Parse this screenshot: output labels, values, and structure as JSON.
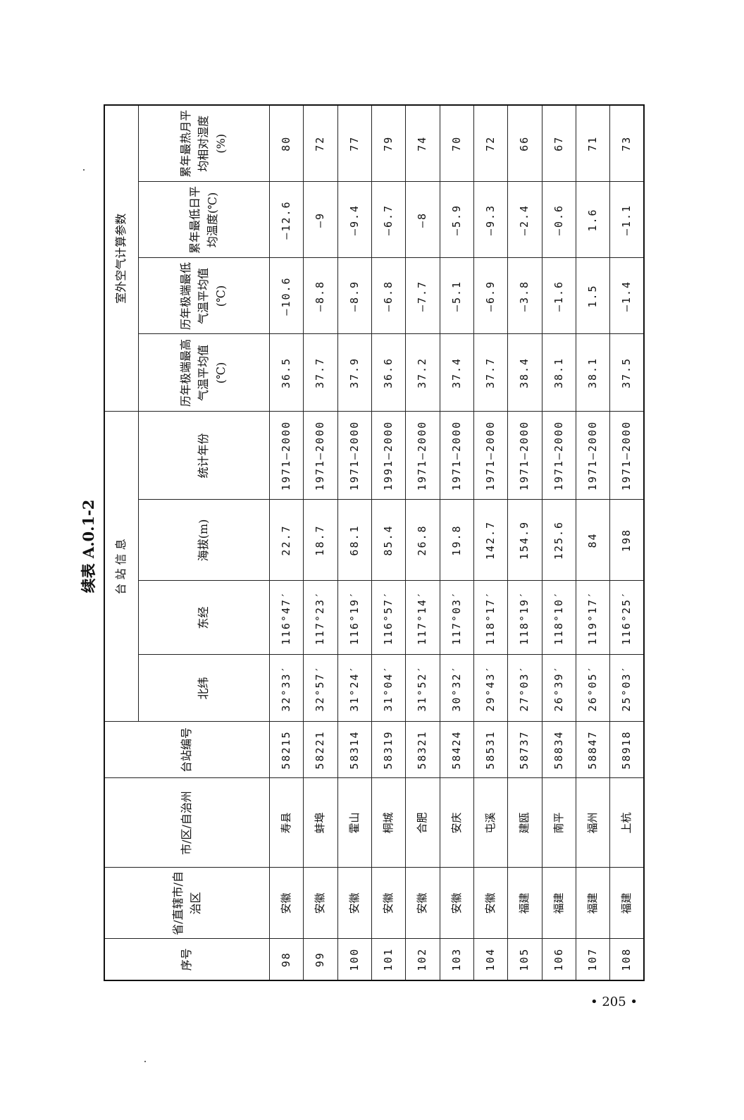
{
  "title": "续表 A.0.1-2",
  "page_number": "• 205 •",
  "table": {
    "group_headers": {
      "station_info": "台 站 信 息",
      "outdoor_params": "室外空气计算参数"
    },
    "columns": [
      "序号",
      "省/直辖市/自治区",
      "市/区/自治州",
      "台站编号",
      "北纬",
      "东经",
      "海拔(m)",
      "统计年份",
      "历年极端最高气温平均值(℃)",
      "历年极端最低气温平均值(℃)",
      "累年最低日平均温度(℃)",
      "累年最热月平均相对湿度(%)"
    ],
    "rows": [
      [
        "98",
        "安徽",
        "寿县",
        "58215",
        "32°33′",
        "116°47′",
        "22.7",
        "1971—2000",
        "36.5",
        "—10.6",
        "—12.6",
        "80"
      ],
      [
        "99",
        "安徽",
        "蚌埠",
        "58221",
        "32°57′",
        "117°23′",
        "18.7",
        "1971—2000",
        "37.7",
        "—8.8",
        "—9",
        "72"
      ],
      [
        "100",
        "安徽",
        "霍山",
        "58314",
        "31°24′",
        "116°19′",
        "68.1",
        "1971—2000",
        "37.9",
        "—8.9",
        "—9.4",
        "77"
      ],
      [
        "101",
        "安徽",
        "桐城",
        "58319",
        "31°04′",
        "116°57′",
        "85.4",
        "1991—2000",
        "36.6",
        "—6.8",
        "—6.7",
        "79"
      ],
      [
        "102",
        "安徽",
        "合肥",
        "58321",
        "31°52′",
        "117°14′",
        "26.8",
        "1971—2000",
        "37.2",
        "—7.7",
        "—8",
        "74"
      ],
      [
        "103",
        "安徽",
        "安庆",
        "58424",
        "30°32′",
        "117°03′",
        "19.8",
        "1971—2000",
        "37.4",
        "—5.1",
        "—5.9",
        "70"
      ],
      [
        "104",
        "安徽",
        "屯溪",
        "58531",
        "29°43′",
        "118°17′",
        "142.7",
        "1971—2000",
        "37.7",
        "—6.9",
        "—9.3",
        "72"
      ],
      [
        "105",
        "福建",
        "建瓯",
        "58737",
        "27°03′",
        "118°19′",
        "154.9",
        "1971—2000",
        "38.4",
        "—3.8",
        "—2.4",
        "66"
      ],
      [
        "106",
        "福建",
        "南平",
        "58834",
        "26°39′",
        "118°10′",
        "125.6",
        "1971—2000",
        "38.1",
        "—1.6",
        "—0.6",
        "67"
      ],
      [
        "107",
        "福建",
        "福州",
        "58847",
        "26°05′",
        "119°17′",
        "84",
        "1971—2000",
        "38.1",
        "1.5",
        "1.6",
        "71"
      ],
      [
        "108",
        "福建",
        "上杭",
        "58918",
        "25°03′",
        "116°25′",
        "198",
        "1971—2000",
        "37.5",
        "—1.4",
        "—1.1",
        "73"
      ]
    ]
  }
}
